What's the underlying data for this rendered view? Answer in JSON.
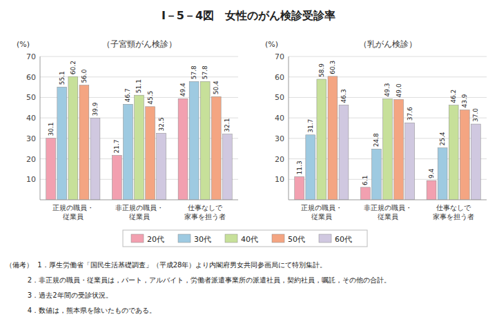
{
  "chart_data": [
    {
      "type": "bar",
      "title": "I－5－4図　女性のがん検診受診率",
      "subtitle": "（子宮頸がん検診）",
      "ylabel": "(%)",
      "categories": [
        "正規の職員・\n従業員",
        "非正規の職員・\n従業員",
        "仕事なしで\n家事を担う者"
      ],
      "series": [
        {
          "name": "20代",
          "color": "#f2a0b0",
          "values": [
            30.1,
            21.7,
            49.4
          ]
        },
        {
          "name": "30代",
          "color": "#9ecae1",
          "values": [
            55.1,
            46.7,
            57.8
          ]
        },
        {
          "name": "40代",
          "color": "#c7e09a",
          "values": [
            60.2,
            51.1,
            57.8
          ]
        },
        {
          "name": "50代",
          "color": "#f4a582",
          "values": [
            56.0,
            45.5,
            50.4
          ]
        },
        {
          "name": "60代",
          "color": "#d0c8e0",
          "values": [
            39.9,
            32.5,
            32.1
          ]
        }
      ],
      "ylim": [
        0,
        70
      ],
      "yticks": [
        10,
        20,
        30,
        40,
        50,
        60,
        70
      ],
      "grid": true,
      "data_labels": true,
      "legend": "bottom",
      "annotations": [
        "（備考）  1．厚生労働省「国民生活基礎調査」（平成28年）より内閣府男女共同参画局にて特別集計。",
        "          2．非正規の職員・従業員は，パート，アルバイト，労働者派遣事業所の派遣社員，契約社員，嘱託，その他の合計。",
        "          3．過去2年間の受診状況。",
        "          4．数値は，熊本県を除いたものである。"
      ]
    },
    {
      "type": "bar",
      "subtitle": "（乳がん検診）",
      "ylabel": "(%)",
      "categories": [
        "正規の職員・\n従業員",
        "非正規の職員・\n従業員",
        "仕事なしで\n家事を担う者"
      ],
      "series": [
        {
          "name": "20代",
          "color": "#f2a0b0",
          "values": [
            11.3,
            6.1,
            9.4
          ]
        },
        {
          "name": "30代",
          "color": "#9ecae1",
          "values": [
            31.7,
            24.8,
            25.4
          ]
        },
        {
          "name": "40代",
          "color": "#c7e09a",
          "values": [
            58.9,
            49.3,
            46.2
          ]
        },
        {
          "name": "50代",
          "color": "#f4a582",
          "values": [
            60.3,
            49.0,
            43.9
          ]
        },
        {
          "name": "60代",
          "color": "#d0c8e0",
          "values": [
            46.3,
            37.6,
            37.0
          ]
        }
      ],
      "ylim": [
        0,
        70
      ],
      "yticks": [
        10,
        20,
        30,
        40,
        50,
        60,
        70
      ],
      "grid": true,
      "data_labels": true
    }
  ]
}
